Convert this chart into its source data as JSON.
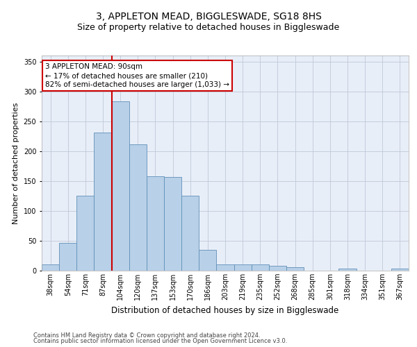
{
  "title_line1": "3, APPLETON MEAD, BIGGLESWADE, SG18 8HS",
  "title_line2": "Size of property relative to detached houses in Biggleswade",
  "xlabel": "Distribution of detached houses by size in Biggleswade",
  "ylabel": "Number of detached properties",
  "categories": [
    "38sqm",
    "54sqm",
    "71sqm",
    "87sqm",
    "104sqm",
    "120sqm",
    "137sqm",
    "153sqm",
    "170sqm",
    "186sqm",
    "203sqm",
    "219sqm",
    "235sqm",
    "252sqm",
    "268sqm",
    "285sqm",
    "301sqm",
    "318sqm",
    "334sqm",
    "351sqm",
    "367sqm"
  ],
  "values": [
    10,
    47,
    126,
    231,
    283,
    211,
    158,
    157,
    126,
    35,
    11,
    11,
    11,
    8,
    6,
    0,
    0,
    3,
    0,
    0,
    3
  ],
  "bar_color": "#b8d0e8",
  "bar_edgecolor": "#6090b8",
  "vline_x_bar": 3,
  "vline_color": "#cc0000",
  "annotation_line1": "3 APPLETON MEAD: 90sqm",
  "annotation_line2": "← 17% of detached houses are smaller (210)",
  "annotation_line3": "82% of semi-detached houses are larger (1,033) →",
  "annotation_box_color": "#ffffff",
  "annotation_box_edgecolor": "#cc0000",
  "ylim": [
    0,
    360
  ],
  "yticks": [
    0,
    50,
    100,
    150,
    200,
    250,
    300,
    350
  ],
  "background_color": "#e8eef8",
  "footer_line1": "Contains HM Land Registry data © Crown copyright and database right 2024.",
  "footer_line2": "Contains public sector information licensed under the Open Government Licence v3.0.",
  "title_fontsize": 10,
  "subtitle_fontsize": 9,
  "tick_fontsize": 7,
  "ylabel_fontsize": 8,
  "xlabel_fontsize": 8.5,
  "annotation_fontsize": 7.5,
  "footer_fontsize": 6
}
